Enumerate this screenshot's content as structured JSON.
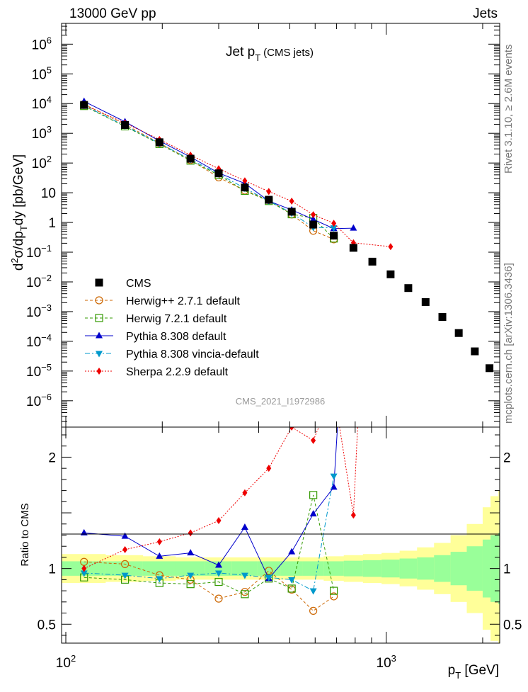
{
  "header": {
    "left": "13000 GeV pp",
    "right": "Jets"
  },
  "title": {
    "main": "Jet p",
    "sub": "T",
    "paren": "(CMS jets)"
  },
  "side_labels": {
    "rivet": "Rivet 3.1.10, ≥ 2.6M events",
    "mcplots": "mcplots.cern.ch [arXiv:1306.3436]"
  },
  "watermark": "CMS_2021_I1972986",
  "ratio_ylabel": "Ratio to CMS",
  "chart_data": {
    "type": "scatter",
    "title": "Jet pT (CMS jets)",
    "xlabel": "p_T [GeV]",
    "ylabel": "d²σ/dp_T dy [pb/GeV]",
    "xscale": "log",
    "yscale": "log",
    "xlim": [
      97,
      2260
    ],
    "ylim": [
      1.3e-07,
      5000000.0
    ],
    "ratio_ylim": [
      0.33,
      2.27
    ],
    "x_ticks": [
      {
        "v": 100,
        "b": "10",
        "e": "2"
      },
      {
        "v": 1000,
        "b": "10",
        "e": "3"
      }
    ],
    "y_ticks": [
      {
        "v": 1000000.0,
        "b": "10",
        "e": "6"
      },
      {
        "v": 100000.0,
        "b": "10",
        "e": "5"
      },
      {
        "v": 10000.0,
        "b": "10",
        "e": "4"
      },
      {
        "v": 1000.0,
        "b": "10",
        "e": "3"
      },
      {
        "v": 100,
        "b": "10",
        "e": "2"
      },
      {
        "v": 10,
        "b": "10",
        "e": ""
      },
      {
        "v": 1,
        "b": "1",
        "e": ""
      },
      {
        "v": 0.1,
        "b": "10",
        "e": "−1"
      },
      {
        "v": 0.01,
        "b": "10",
        "e": "−2"
      },
      {
        "v": 0.001,
        "b": "10",
        "e": "−3"
      },
      {
        "v": 0.0001,
        "b": "10",
        "e": "−4"
      },
      {
        "v": 1e-05,
        "b": "10",
        "e": "−5"
      },
      {
        "v": 1e-06,
        "b": "10",
        "e": "−6"
      }
    ],
    "ratio_ticks": [
      {
        "v": 2,
        "t": "2"
      },
      {
        "v": 1,
        "t": "1"
      },
      {
        "v": 0.5,
        "t": "0.5"
      }
    ],
    "bin_edges": [
      97,
      133,
      174,
      220,
      272,
      330,
      395,
      468,
      548,
      638,
      737,
      846,
      967,
      1101,
      1248,
      1410,
      1588,
      1784,
      2000,
      2116,
      2238,
      2260
    ],
    "band_inner": [
      0.065,
      0.065,
      0.065,
      0.065,
      0.065,
      0.065,
      0.065,
      0.065,
      0.065,
      0.065,
      0.07,
      0.075,
      0.08,
      0.09,
      0.1,
      0.12,
      0.15,
      0.2,
      0.26,
      0.3,
      0.32
    ],
    "band_outer": [
      0.13,
      0.12,
      0.11,
      0.1,
      0.1,
      0.1,
      0.1,
      0.1,
      0.1,
      0.11,
      0.12,
      0.13,
      0.14,
      0.16,
      0.19,
      0.23,
      0.3,
      0.4,
      0.55,
      0.65,
      0.7
    ],
    "data": {
      "name": "CMS",
      "x": [
        114,
        153,
        196,
        245,
        300,
        362,
        430,
        507,
        592,
        686,
        790,
        905,
        1032,
        1172,
        1327,
        1497,
        1684,
        1890,
        2100
      ],
      "y": [
        9000,
        1900,
        500,
        140,
        45,
        15,
        5.8,
        2.3,
        0.85,
        0.36,
        0.14,
        0.048,
        0.018,
        0.0062,
        0.0021,
        0.00066,
        0.00019,
        4.6e-05,
        1.25e-05
      ]
    },
    "series": [
      {
        "name": "Herwig++ 2.7.1 default",
        "color": "#cc6600",
        "marker": "circle-open",
        "dash": "4,3",
        "x": [
          114,
          153,
          196,
          245,
          300,
          362,
          430,
          507,
          592,
          686
        ],
        "ratio": [
          1.06,
          1.04,
          0.94,
          0.9,
          0.73,
          0.79,
          0.98,
          0.81,
          0.62,
          0.75
        ]
      },
      {
        "name": "Herwig 7.2.1 default",
        "color": "#339900",
        "marker": "square-open",
        "dash": "4,3",
        "x": [
          114,
          153,
          196,
          245,
          300,
          362,
          430,
          507,
          592,
          686
        ],
        "ratio": [
          0.92,
          0.9,
          0.87,
          0.86,
          0.88,
          0.77,
          0.91,
          0.82,
          1.66,
          0.8
        ]
      },
      {
        "name": "Pythia 8.308 default",
        "color": "#0000cc",
        "marker": "triangle-up",
        "dash": "",
        "x": [
          114,
          153,
          196,
          245,
          300,
          362,
          430,
          507,
          592,
          686,
          790
        ],
        "ratio": [
          1.32,
          1.29,
          1.11,
          1.14,
          1.03,
          1.37,
          0.91,
          1.15,
          1.49,
          1.73,
          4.6
        ]
      },
      {
        "name": "Pythia 8.308 vincia-default",
        "color": "#0099cc",
        "marker": "triangle-down",
        "dash": "7,3,2,3",
        "x": [
          114,
          153,
          196,
          245,
          300,
          362,
          430,
          507,
          592,
          686
        ],
        "ratio": [
          0.96,
          0.94,
          0.91,
          0.94,
          0.96,
          0.94,
          0.92,
          0.9,
          0.8,
          1.83
        ]
      },
      {
        "name": "Sherpa 2.2.9 default",
        "color": "#ee0000",
        "marker": "diamond",
        "dash": "2,2",
        "x": [
          114,
          153,
          196,
          245,
          300,
          362,
          430,
          507,
          592,
          686,
          790,
          1032
        ],
        "ratio": [
          1.0,
          1.17,
          1.24,
          1.32,
          1.43,
          1.68,
          1.9,
          2.27,
          2.15,
          2.6,
          1.48,
          8.5
        ]
      }
    ]
  }
}
